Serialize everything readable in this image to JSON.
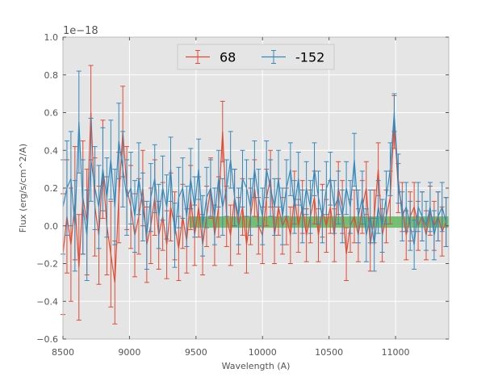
{
  "chart_data": {
    "type": "line",
    "title": "",
    "xlabel": "Wavelength (A)",
    "ylabel": "Flux (erg/s/cm^2/A)",
    "y_offset_label": "1e−18",
    "xlim": [
      8500,
      11400
    ],
    "ylim": [
      -0.6,
      1.0
    ],
    "xticks": [
      8500,
      9000,
      9500,
      10000,
      10500,
      11000
    ],
    "xtick_labels": [
      "8500",
      "9000",
      "9500",
      "10000",
      "10500",
      "11000"
    ],
    "yticks": [
      -0.6,
      -0.4,
      -0.2,
      0.0,
      0.2,
      0.4,
      0.6,
      0.8,
      1.0
    ],
    "ytick_labels": [
      "−0.6",
      "−0.4",
      "−0.2",
      "0.0",
      "0.2",
      "0.4",
      "0.6",
      "0.8",
      "1.0"
    ],
    "grid": true,
    "background": "#e5e5e5",
    "legend_position": "top-center",
    "band": {
      "x_range": [
        9450,
        11400
      ],
      "y_range": [
        -0.01,
        0.05
      ],
      "color": "#4daf4a"
    },
    "series": [
      {
        "name": "68",
        "color": "#e24a33",
        "x": [
          8500,
          8530,
          8560,
          8590,
          8620,
          8650,
          8680,
          8710,
          8740,
          8770,
          8800,
          8830,
          8860,
          8890,
          8920,
          8950,
          8980,
          9010,
          9040,
          9070,
          9100,
          9130,
          9160,
          9190,
          9220,
          9250,
          9280,
          9310,
          9340,
          9370,
          9400,
          9430,
          9460,
          9490,
          9520,
          9550,
          9580,
          9610,
          9640,
          9670,
          9700,
          9730,
          9760,
          9790,
          9820,
          9850,
          9880,
          9910,
          9940,
          9970,
          10000,
          10030,
          10060,
          10090,
          10120,
          10150,
          10180,
          10210,
          10240,
          10270,
          10300,
          10330,
          10360,
          10390,
          10420,
          10450,
          10480,
          10510,
          10540,
          10570,
          10600,
          10630,
          10660,
          10690,
          10720,
          10750,
          10780,
          10810,
          10840,
          10870,
          10900,
          10930,
          10960,
          10990,
          11020,
          11050,
          11080,
          11110,
          11140,
          11170,
          11200,
          11230,
          11260,
          11290,
          11320,
          11350,
          11380
        ],
        "y": [
          -0.15,
          0.05,
          -0.1,
          0.12,
          -0.22,
          0.15,
          0.02,
          0.6,
          0.1,
          -0.05,
          0.3,
          0.0,
          -0.15,
          -0.3,
          0.15,
          0.5,
          0.2,
          0.1,
          -0.05,
          0.05,
          0.2,
          -0.1,
          0.0,
          0.15,
          -0.05,
          0.05,
          -0.1,
          0.1,
          0.0,
          -0.12,
          0.05,
          -0.08,
          0.15,
          -0.05,
          0.1,
          -0.1,
          0.05,
          0.2,
          -0.05,
          0.1,
          0.5,
          0.05,
          -0.05,
          0.15,
          0.0,
          0.1,
          -0.1,
          0.05,
          0.2,
          0.0,
          -0.05,
          0.15,
          0.25,
          -0.05,
          0.1,
          0.0,
          0.05,
          -0.05,
          0.15,
          0.0,
          0.1,
          -0.05,
          0.05,
          0.15,
          -0.05,
          0.08,
          0.0,
          0.1,
          -0.05,
          0.2,
          0.1,
          -0.15,
          0.0,
          0.05,
          -0.05,
          0.1,
          0.2,
          -0.1,
          0.05,
          0.3,
          -0.05,
          0.05,
          0.15,
          0.55,
          0.2,
          0.1,
          -0.05,
          0.05,
          0.1,
          0.0,
          0.05,
          -0.05,
          0.08,
          0.0,
          0.05,
          -0.03,
          0.02
        ],
        "yerr": [
          0.32,
          0.3,
          0.3,
          0.3,
          0.28,
          0.3,
          0.28,
          0.25,
          0.26,
          0.26,
          0.26,
          0.26,
          0.28,
          0.22,
          0.24,
          0.24,
          0.22,
          0.22,
          0.22,
          0.2,
          0.2,
          0.2,
          0.2,
          0.2,
          0.18,
          0.18,
          0.18,
          0.18,
          0.18,
          0.17,
          0.17,
          0.17,
          0.17,
          0.16,
          0.16,
          0.16,
          0.16,
          0.16,
          0.16,
          0.16,
          0.16,
          0.16,
          0.16,
          0.15,
          0.15,
          0.15,
          0.15,
          0.15,
          0.15,
          0.15,
          0.15,
          0.15,
          0.15,
          0.15,
          0.15,
          0.15,
          0.15,
          0.15,
          0.14,
          0.14,
          0.14,
          0.14,
          0.14,
          0.14,
          0.14,
          0.14,
          0.14,
          0.14,
          0.14,
          0.14,
          0.14,
          0.14,
          0.14,
          0.14,
          0.14,
          0.14,
          0.14,
          0.14,
          0.14,
          0.14,
          0.14,
          0.14,
          0.14,
          0.14,
          0.13,
          0.13,
          0.13,
          0.13,
          0.13,
          0.13,
          0.13,
          0.13,
          0.13,
          0.13,
          0.13,
          0.13,
          0.13
        ]
      },
      {
        "name": "-152",
        "color": "#348abd",
        "x": [
          8500,
          8530,
          8560,
          8590,
          8620,
          8650,
          8680,
          8710,
          8740,
          8770,
          8800,
          8830,
          8860,
          8890,
          8920,
          8950,
          8980,
          9010,
          9040,
          9070,
          9100,
          9130,
          9160,
          9190,
          9220,
          9250,
          9280,
          9310,
          9340,
          9370,
          9400,
          9430,
          9460,
          9490,
          9520,
          9550,
          9580,
          9610,
          9640,
          9670,
          9700,
          9730,
          9760,
          9790,
          9820,
          9850,
          9880,
          9910,
          9940,
          9970,
          10000,
          10030,
          10060,
          10090,
          10120,
          10150,
          10180,
          10210,
          10240,
          10270,
          10300,
          10330,
          10360,
          10390,
          10420,
          10450,
          10480,
          10510,
          10540,
          10570,
          10600,
          10630,
          10660,
          10690,
          10720,
          10750,
          10780,
          10810,
          10840,
          10870,
          10900,
          10930,
          10960,
          10990,
          11020,
          11050,
          11080,
          11110,
          11140,
          11170,
          11200,
          11230,
          11260,
          11290,
          11320,
          11350,
          11380
        ],
        "y": [
          0.1,
          0.2,
          0.25,
          0.0,
          0.55,
          0.1,
          -0.05,
          0.35,
          0.2,
          0.1,
          0.3,
          0.15,
          0.35,
          0.1,
          0.45,
          0.3,
          0.15,
          0.2,
          0.05,
          0.25,
          0.1,
          -0.05,
          0.15,
          0.25,
          0.05,
          0.2,
          0.1,
          0.3,
          -0.05,
          0.15,
          0.2,
          0.05,
          0.25,
          0.1,
          0.3,
          0.0,
          0.15,
          0.2,
          0.05,
          0.25,
          0.1,
          0.2,
          0.35,
          0.15,
          0.05,
          0.25,
          0.2,
          0.1,
          0.3,
          0.15,
          0.05,
          0.3,
          0.2,
          0.1,
          0.25,
          0.05,
          0.2,
          0.3,
          0.1,
          0.25,
          0.05,
          0.2,
          0.1,
          0.3,
          0.15,
          0.05,
          0.2,
          0.25,
          0.1,
          0.15,
          0.05,
          0.2,
          0.1,
          0.35,
          0.05,
          0.15,
          -0.05,
          0.05,
          -0.1,
          0.1,
          0.0,
          0.15,
          0.3,
          0.6,
          0.25,
          0.05,
          0.1,
          0.0,
          -0.1,
          0.1,
          0.05,
          0.0,
          0.1,
          -0.05,
          0.05,
          0.1,
          0.02
        ],
        "yerr": [
          0.25,
          0.25,
          0.25,
          0.24,
          0.27,
          0.25,
          0.24,
          0.22,
          0.22,
          0.22,
          0.22,
          0.21,
          0.21,
          0.2,
          0.2,
          0.2,
          0.2,
          0.19,
          0.19,
          0.19,
          0.18,
          0.18,
          0.18,
          0.18,
          0.17,
          0.17,
          0.17,
          0.17,
          0.17,
          0.16,
          0.16,
          0.16,
          0.16,
          0.16,
          0.16,
          0.16,
          0.16,
          0.15,
          0.15,
          0.15,
          0.15,
          0.15,
          0.15,
          0.15,
          0.15,
          0.15,
          0.15,
          0.15,
          0.15,
          0.15,
          0.15,
          0.15,
          0.15,
          0.15,
          0.15,
          0.15,
          0.15,
          0.14,
          0.14,
          0.14,
          0.14,
          0.14,
          0.14,
          0.14,
          0.14,
          0.14,
          0.14,
          0.14,
          0.14,
          0.14,
          0.14,
          0.14,
          0.14,
          0.14,
          0.14,
          0.14,
          0.14,
          0.14,
          0.14,
          0.14,
          0.14,
          0.14,
          0.14,
          0.1,
          0.13,
          0.13,
          0.13,
          0.13,
          0.13,
          0.13,
          0.13,
          0.13,
          0.13,
          0.13,
          0.13,
          0.13,
          0.13
        ]
      }
    ]
  }
}
